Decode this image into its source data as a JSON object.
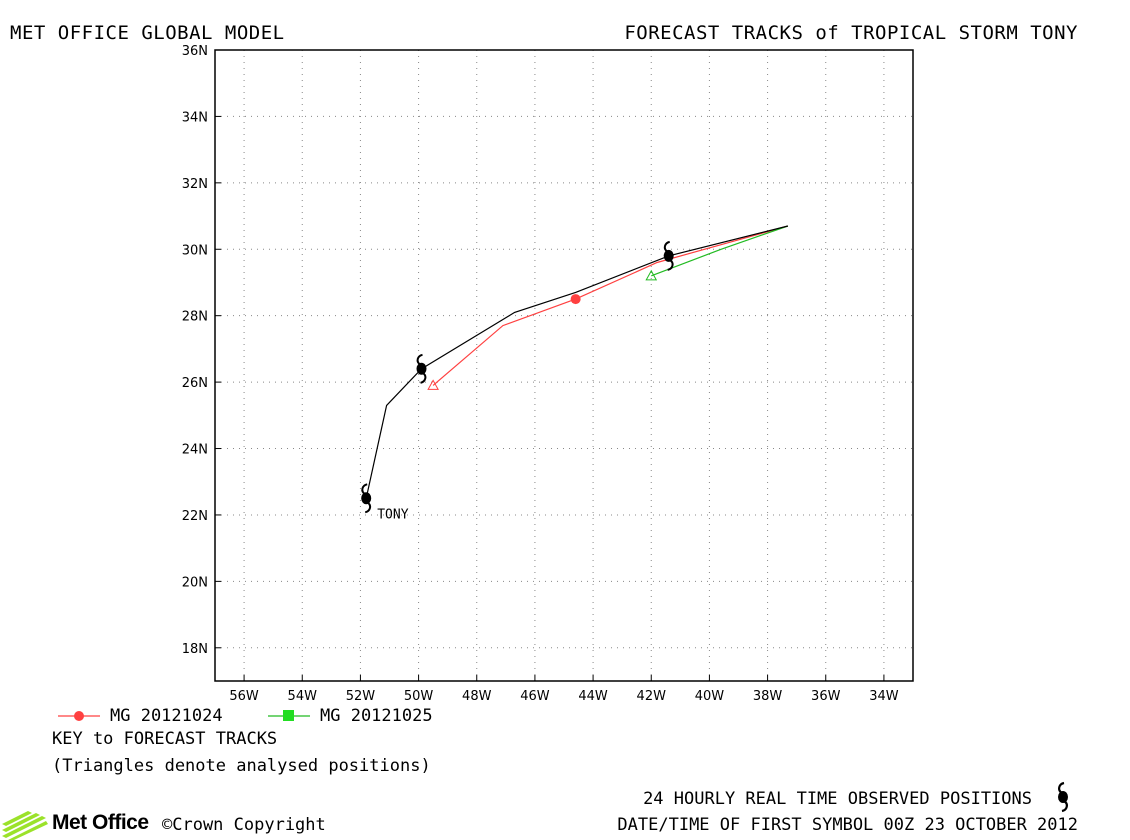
{
  "header": {
    "left_title": "MET OFFICE GLOBAL MODEL",
    "right_title": "FORECAST TRACKS of TROPICAL STORM TONY"
  },
  "map": {
    "lat_range": [
      17,
      36
    ],
    "lon_range": [
      -57,
      -33
    ],
    "lat_ticks": [
      "18N",
      "20N",
      "22N",
      "24N",
      "26N",
      "28N",
      "30N",
      "32N",
      "34N",
      "36N"
    ],
    "lon_ticks": [
      "56W",
      "54W",
      "52W",
      "50W",
      "48W",
      "46W",
      "44W",
      "42W",
      "40W",
      "38W",
      "36W",
      "34W"
    ],
    "grid": "dotted",
    "storm_label": "TONY",
    "observed_track": {
      "color": "#000000",
      "points": [
        [
          -51.8,
          22.5
        ],
        [
          -51.1,
          25.3
        ],
        [
          -49.9,
          26.4
        ],
        [
          -46.7,
          28.1
        ],
        [
          -44.6,
          28.7
        ],
        [
          -41.4,
          29.8
        ],
        [
          -37.3,
          30.7
        ]
      ],
      "symbols": [
        [
          -51.8,
          22.5
        ],
        [
          -49.9,
          26.4
        ],
        [
          -41.4,
          29.8
        ]
      ]
    },
    "forecast_tracks": [
      {
        "name": "MG 20121024",
        "color": "#ff4040",
        "points": [
          [
            -49.5,
            25.9
          ],
          [
            -47.1,
            27.7
          ],
          [
            -44.6,
            28.5
          ],
          [
            -41.8,
            29.6
          ],
          [
            -37.3,
            30.7
          ]
        ],
        "analysed": [
          -49.5,
          25.9
        ],
        "marker": [
          -44.6,
          28.5
        ]
      },
      {
        "name": "MG 20121025",
        "color": "#22bb22",
        "points": [
          [
            -42.0,
            29.2
          ],
          [
            -39.6,
            30.0
          ],
          [
            -37.3,
            30.7
          ]
        ],
        "analysed": [
          -42.0,
          29.2
        ]
      }
    ]
  },
  "legend": {
    "items": [
      {
        "label": "MG 20121024",
        "color": "#ff4040",
        "marker": "circle"
      },
      {
        "label": "MG 20121025",
        "color": "#22bb22",
        "marker": "square"
      }
    ]
  },
  "key": {
    "heading": "KEY to FORECAST TRACKS",
    "note": "(Triangles denote analysed positions)"
  },
  "footer": {
    "observed_note": "24 HOURLY REAL TIME OBSERVED POSITIONS",
    "date_note": "DATE/TIME OF FIRST SYMBOL 00Z 23 OCTOBER 2012",
    "logo_text": "Met Office",
    "copyright": "©Crown Copyright"
  }
}
